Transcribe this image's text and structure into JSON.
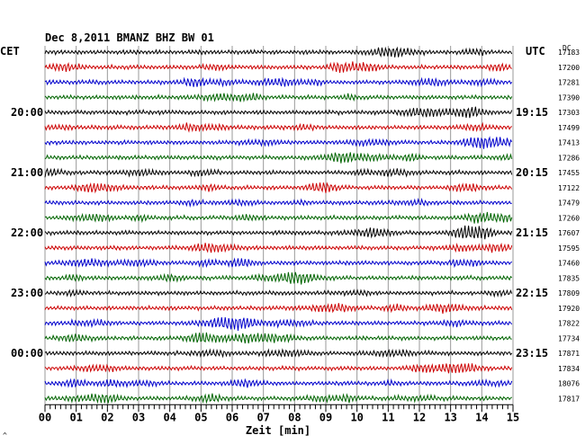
{
  "chart_data": {
    "type": "line",
    "title": "Dec 8,2011   BMANZ BHZ BW 01",
    "left_label": "CET",
    "right_label": "UTC",
    "dc_header": "DC",
    "xlabel": "Zeit [min]",
    "xlim": [
      0,
      15
    ],
    "x_ticks": [
      "00",
      "01",
      "02",
      "03",
      "04",
      "05",
      "06",
      "07",
      "08",
      "09",
      "10",
      "11",
      "12",
      "13",
      "14",
      "15"
    ],
    "line_colors": [
      "#000000",
      "#cc0000",
      "#0000cc",
      "#006400"
    ],
    "left_time_labels": [
      {
        "line": 4,
        "text": "20:00"
      },
      {
        "line": 8,
        "text": "21:00"
      },
      {
        "line": 12,
        "text": "22:00"
      },
      {
        "line": 16,
        "text": "23:00"
      },
      {
        "line": 20,
        "text": "00:00"
      }
    ],
    "right_time_labels": [
      {
        "line": 4,
        "text": "19:15"
      },
      {
        "line": 8,
        "text": "20:15"
      },
      {
        "line": 12,
        "text": "21:15"
      },
      {
        "line": 16,
        "text": "22:15"
      },
      {
        "line": 20,
        "text": "23:15"
      }
    ],
    "dc_values": [
      "17183",
      "17200",
      "17281",
      "17390",
      "17303",
      "17499",
      "17413",
      "17286",
      "17455",
      "17122",
      "17479",
      "17260",
      "17607",
      "17595",
      "17460",
      "17835",
      "17809",
      "17920",
      "17822",
      "17734",
      "17871",
      "17834",
      "18076",
      "17817"
    ],
    "footer_mark": "^"
  }
}
